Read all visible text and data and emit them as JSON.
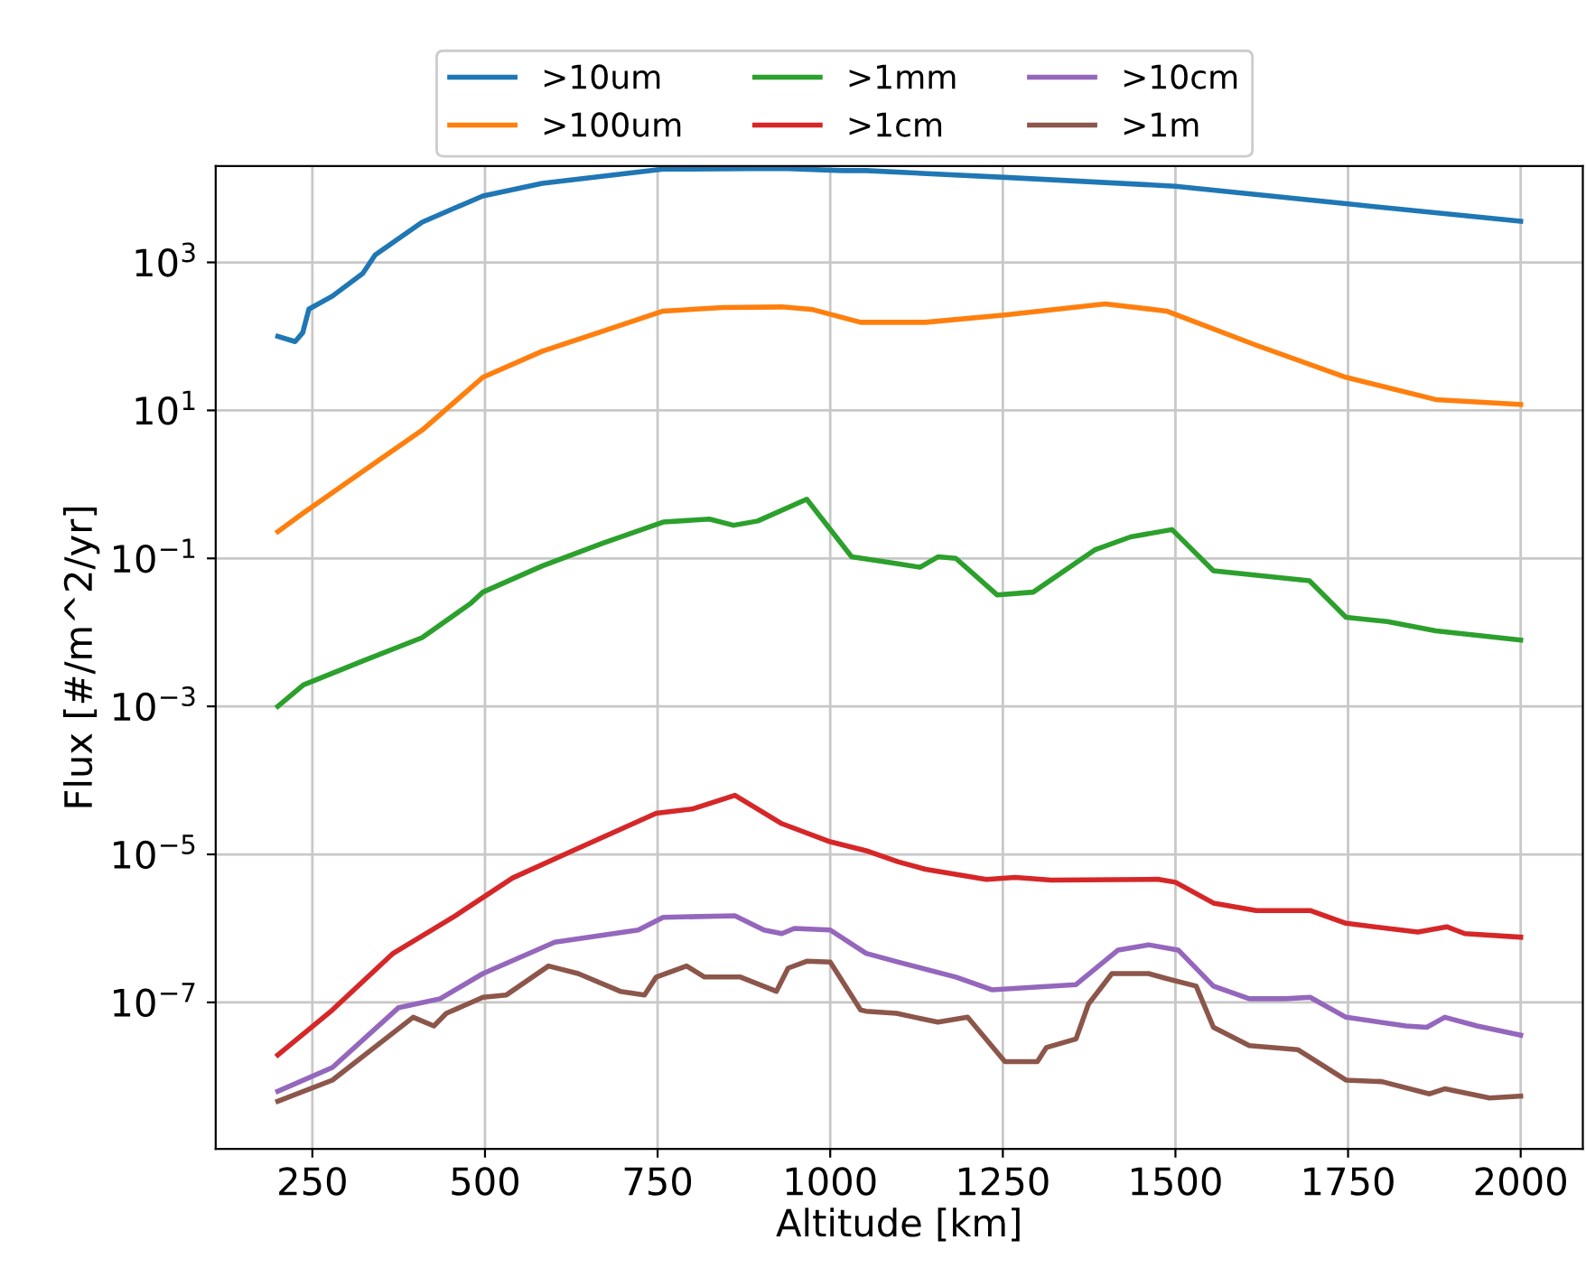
{
  "chart_data": {
    "type": "line",
    "xlabel": "Altitude [km]",
    "ylabel": "Flux [#/m^2/yr]",
    "log": "y",
    "grid": true,
    "legend": "top",
    "marker": "none",
    "line_style": "solid",
    "xlim": [
      110,
      2090
    ],
    "xticks": [
      250,
      500,
      750,
      1000,
      1250,
      1500,
      1750,
      2000
    ],
    "ylim": [
      1.05e-09,
      20000.0
    ],
    "yticks": [
      {
        "value": 1e-07,
        "label": "10$^{−7}$"
      },
      {
        "value": 1e-05,
        "label": "10$^{−5}$"
      },
      {
        "value": 0.001,
        "label": "10$^{−3}$"
      },
      {
        "value": 0.1,
        "label": "10$^{−1}$"
      },
      {
        "value": 10,
        "label": "10$^{1}$"
      },
      {
        "value": 1000,
        "label": "10$^{3}$"
      }
    ],
    "series": [
      {
        "name": ">10um",
        "color": "#1f77b4",
        "x": [
          200,
          225,
          236,
          245,
          279,
          323,
          341,
          409,
          497,
          583,
          758,
          930,
          1018,
          1052,
          1253,
          1500,
          1747,
          2000
        ],
        "values": [
          100,
          85,
          112,
          234,
          350,
          710,
          1260,
          3500,
          7900,
          11700,
          18200,
          18600,
          17400,
          17400,
          14100,
          10700,
          6200,
          3600
        ]
      },
      {
        "name": ">100um",
        "color": "#ff7f0e",
        "x": [
          200,
          237,
          323,
          409,
          497,
          583,
          670,
          758,
          845,
          930,
          975,
          1044,
          1138,
          1253,
          1398,
          1487,
          1617,
          1747,
          1877,
          2000
        ],
        "values": [
          0.23,
          0.41,
          1.5,
          5.4,
          28,
          63,
          117,
          220,
          245,
          250,
          230,
          155,
          155,
          195,
          275,
          220,
          76,
          28,
          14,
          12
        ]
      },
      {
        "name": ">1mm",
        "color": "#2ca02c",
        "x": [
          200,
          237,
          323,
          409,
          479,
          497,
          583,
          670,
          758,
          825,
          860,
          895,
          966,
          1031,
          1096,
          1130,
          1156,
          1182,
          1242,
          1294,
          1383,
          1435,
          1495,
          1555,
          1659,
          1694,
          1747,
          1807,
          1877,
          2000
        ],
        "values": [
          0.001,
          0.00195,
          0.0041,
          0.0085,
          0.0245,
          0.035,
          0.079,
          0.16,
          0.31,
          0.34,
          0.28,
          0.32,
          0.63,
          0.105,
          0.085,
          0.076,
          0.105,
          0.1,
          0.032,
          0.035,
          0.13,
          0.195,
          0.245,
          0.068,
          0.054,
          0.05,
          0.016,
          0.014,
          0.0105,
          0.0079
        ]
      },
      {
        "name": ">1cm",
        "color": "#d62728",
        "x": [
          200,
          279,
          367,
          453,
          540,
          627,
          748,
          800,
          862,
          930,
          1000,
          1052,
          1099,
          1138,
          1226,
          1268,
          1320,
          1476,
          1500,
          1555,
          1617,
          1695,
          1747,
          1851,
          1893,
          1919,
          2000
        ],
        "values": [
          1.95e-08,
          7.9e-08,
          4.6e-07,
          1.4e-06,
          4.8e-06,
          1.12e-05,
          3.6e-05,
          4.1e-05,
          6.3e-05,
          2.6e-05,
          1.48e-05,
          1.12e-05,
          7.9e-06,
          6.3e-06,
          4.6e-06,
          4.9e-06,
          4.5e-06,
          4.6e-06,
          4.2e-06,
          2.2e-06,
          1.74e-06,
          1.74e-06,
          1.17e-06,
          8.9e-07,
          1.05e-06,
          8.5e-07,
          7.6e-07
        ]
      },
      {
        "name": ">10cm",
        "color": "#9467bd",
        "x": [
          200,
          279,
          375,
          435,
          497,
          601,
          722,
          758,
          862,
          904,
          930,
          948,
          1000,
          1052,
          1099,
          1182,
          1234,
          1356,
          1417,
          1461,
          1504,
          1555,
          1607,
          1659,
          1695,
          1747,
          1834,
          1864,
          1890,
          1937,
          2000
        ],
        "values": [
          6.3e-09,
          1.32e-08,
          8.5e-08,
          1.12e-07,
          2.45e-07,
          6.5e-07,
          9.5e-07,
          1.41e-06,
          1.48e-06,
          9.5e-07,
          8.5e-07,
          1e-06,
          9.5e-07,
          4.6e-07,
          3.5e-07,
          2.2e-07,
          1.48e-07,
          1.74e-07,
          5.1e-07,
          6e-07,
          5.1e-07,
          1.66e-07,
          1.12e-07,
          1.12e-07,
          1.17e-07,
          6.3e-08,
          4.8e-08,
          4.6e-08,
          6.3e-08,
          4.8e-08,
          3.6e-08
        ]
      },
      {
        "name": ">1m",
        "color": "#8c564b",
        "x": [
          200,
          279,
          396,
          426,
          444,
          497,
          531,
          592,
          635,
          696,
          731,
          748,
          792,
          818,
          870,
          922,
          939,
          966,
          1000,
          1044,
          1052,
          1096,
          1156,
          1199,
          1253,
          1300,
          1313,
          1356,
          1374,
          1408,
          1461,
          1487,
          1530,
          1555,
          1607,
          1677,
          1747,
          1799,
          1868,
          1890,
          1955,
          2000
        ],
        "values": [
          4.6e-09,
          8.9e-09,
          6.3e-08,
          4.8e-08,
          7.1e-08,
          1.17e-07,
          1.26e-07,
          3.1e-07,
          2.45e-07,
          1.41e-07,
          1.26e-07,
          2.2e-07,
          3.1e-07,
          2.2e-07,
          2.2e-07,
          1.41e-07,
          2.9e-07,
          3.6e-07,
          3.5e-07,
          7.9e-08,
          7.6e-08,
          7.1e-08,
          5.4e-08,
          6.3e-08,
          1.58e-08,
          1.58e-08,
          2.45e-08,
          3.2e-08,
          9.5e-08,
          2.45e-07,
          2.45e-07,
          2.1e-07,
          1.66e-07,
          4.6e-08,
          2.6e-08,
          2.3e-08,
          8.9e-09,
          8.5e-09,
          5.8e-09,
          6.8e-09,
          5.1e-09,
          5.4e-09
        ]
      }
    ]
  }
}
